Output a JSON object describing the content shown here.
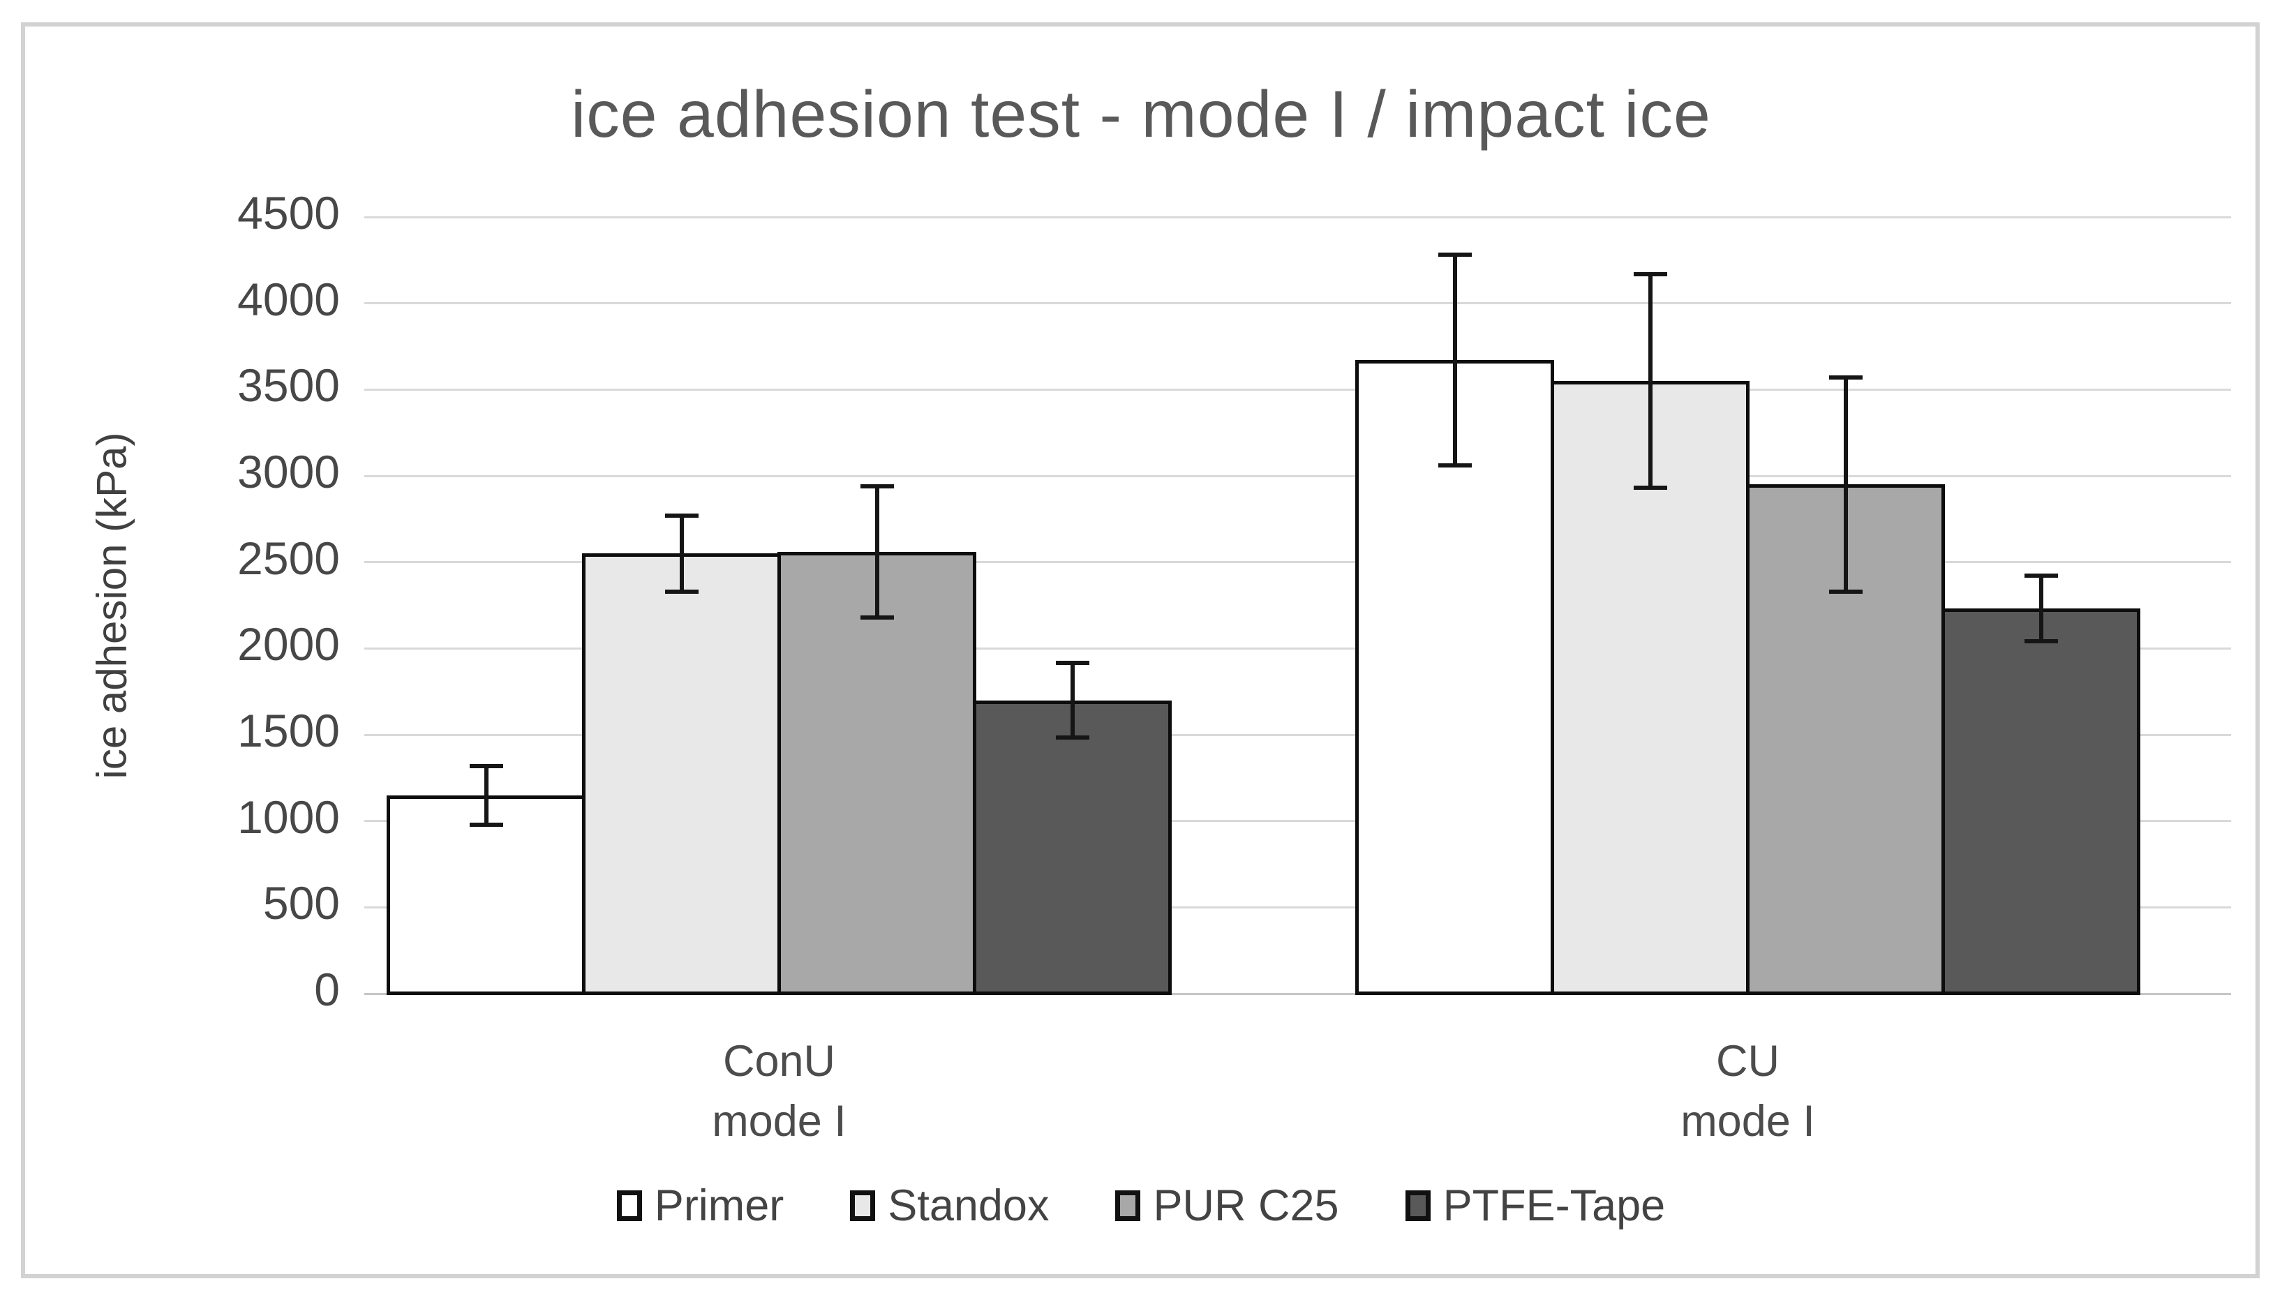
{
  "chart_data": {
    "type": "bar",
    "title": "ice adhesion test - mode I / impact ice",
    "xlabel": "",
    "ylabel": "ice adhesion (kPa)",
    "ylim": [
      0,
      4500
    ],
    "ytick_step": 500,
    "yticks": [
      0,
      500,
      1000,
      1500,
      2000,
      2500,
      3000,
      3500,
      4000,
      4500
    ],
    "grid": "horizontal",
    "legend_position": "bottom",
    "categories": [
      "ConU\nmode I",
      "CU\nmode I"
    ],
    "series": [
      {
        "name": "Primer",
        "color": "#ffffff",
        "values": [
          1150,
          3670
        ],
        "errors": [
          170,
          610
        ]
      },
      {
        "name": "Standox",
        "color": "#e8e8e8",
        "values": [
          2550,
          3550
        ],
        "errors": [
          220,
          620
        ]
      },
      {
        "name": "PUR C25",
        "color": "#a8a8a8",
        "values": [
          2560,
          2950
        ],
        "errors": [
          380,
          620
        ]
      },
      {
        "name": "PTFE-Tape",
        "color": "#595959",
        "values": [
          1700,
          2230
        ],
        "errors": [
          215,
          190
        ]
      }
    ]
  },
  "colors": {
    "grid": "#d9d9d9",
    "baseline": "#c6c6c6",
    "bar_border": "#0d0d0d",
    "error_bar": "#151515",
    "title_text": "#595959",
    "axis_text": "#474747",
    "figure_border": "#d2d2d2",
    "background": "#ffffff"
  }
}
